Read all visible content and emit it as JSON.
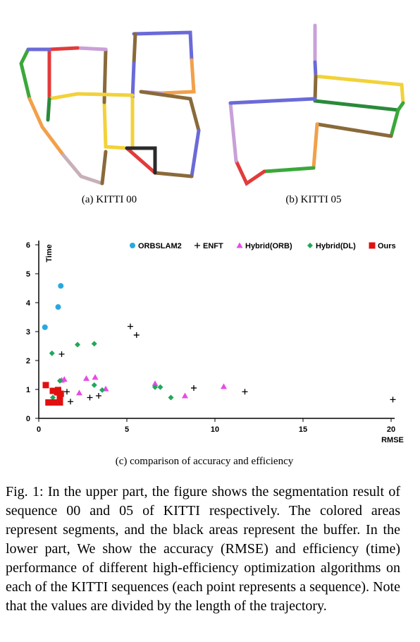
{
  "subfigures": {
    "a_caption": "(a) KITTI 00",
    "b_caption": "(b) KITTI 05",
    "c_caption": "(c) comparison of accuracy and efficiency"
  },
  "figure_caption": "Fig. 1: In the upper part, the figure shows the segmentation result of sequence 00 and 05 of KITTI respectively. The colored areas represent segments, and the black areas represent the buffer. In the lower part, We show the accuracy (RMSE) and efficiency (time) performance of different high-efficiency optimization algorithms on each of the KITTI sequences (each point represents a sequence). Note that the values are divided by the length of the trajectory.",
  "trajectory_colors": [
    "#3aa83a",
    "#e23b3b",
    "#c9a0d9",
    "#f2d23a",
    "#8a6a3a",
    "#6a6ad9",
    "#f2a04a",
    "#c8b0b8",
    "#2a8a3a"
  ],
  "chart_data": {
    "type": "scatter",
    "xlabel": "RMSE",
    "ylabel": "Time",
    "xlim": [
      0,
      20
    ],
    "ylim": [
      0,
      6
    ],
    "xticks": [
      0,
      5,
      10,
      15,
      20
    ],
    "yticks": [
      0,
      1,
      2,
      3,
      4,
      5,
      6
    ],
    "legend_position": "top",
    "series": [
      {
        "name": "ORBSLAM2",
        "marker": "circle",
        "color": "#29a8e0",
        "points": [
          [
            0.35,
            3.15
          ],
          [
            1.1,
            3.85
          ],
          [
            1.25,
            4.58
          ]
        ]
      },
      {
        "name": "ENFT",
        "marker": "plus",
        "color": "#000000",
        "points": [
          [
            5.2,
            3.18
          ],
          [
            5.55,
            2.88
          ],
          [
            1.3,
            2.22
          ],
          [
            1.6,
            0.92
          ],
          [
            1.8,
            0.58
          ],
          [
            2.9,
            0.72
          ],
          [
            3.4,
            0.78
          ],
          [
            8.8,
            1.05
          ],
          [
            11.7,
            0.92
          ],
          [
            20.1,
            0.65
          ]
        ]
      },
      {
        "name": "Hybrid(ORB)",
        "marker": "triangle",
        "color": "#e64be6",
        "points": [
          [
            1.3,
            1.32
          ],
          [
            1.45,
            1.35
          ],
          [
            2.3,
            0.88
          ],
          [
            2.7,
            1.38
          ],
          [
            3.2,
            1.42
          ],
          [
            3.8,
            1.02
          ],
          [
            6.6,
            1.2
          ],
          [
            8.3,
            0.78
          ],
          [
            10.5,
            1.1
          ]
        ]
      },
      {
        "name": "Hybrid(DL)",
        "marker": "diamond",
        "color": "#1fa85a",
        "points": [
          [
            0.75,
            2.25
          ],
          [
            2.2,
            2.55
          ],
          [
            3.15,
            2.58
          ],
          [
            3.15,
            1.15
          ],
          [
            3.6,
            0.98
          ],
          [
            0.8,
            0.72
          ],
          [
            1.2,
            1.3
          ],
          [
            6.6,
            1.08
          ],
          [
            6.9,
            1.08
          ],
          [
            7.5,
            0.72
          ]
        ]
      },
      {
        "name": "Ours",
        "marker": "square",
        "color": "#e01010",
        "points": [
          [
            0.4,
            1.15
          ],
          [
            0.55,
            0.55
          ],
          [
            0.8,
            0.95
          ],
          [
            0.85,
            0.55
          ],
          [
            1.1,
            0.98
          ],
          [
            1.2,
            0.72
          ],
          [
            1.25,
            0.85
          ],
          [
            1.2,
            0.55
          ],
          [
            1.05,
            0.9
          ]
        ]
      }
    ]
  }
}
